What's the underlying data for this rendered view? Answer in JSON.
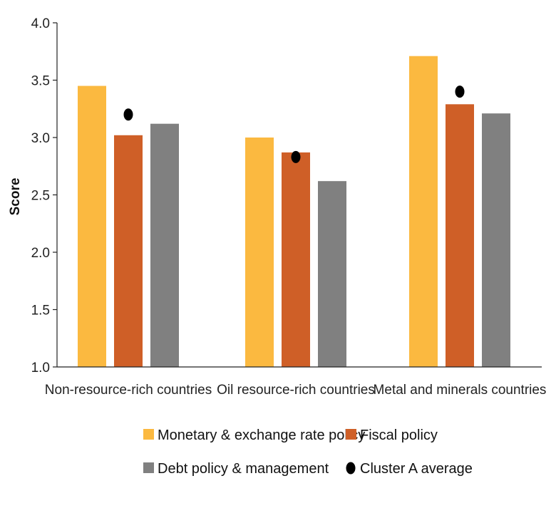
{
  "chart_data": {
    "type": "bar",
    "title": "",
    "xlabel": "",
    "ylabel": "Score",
    "ylim": [
      1.0,
      4.0
    ],
    "yticks": [
      "1.0",
      "1.5",
      "2.0",
      "2.5",
      "3.0",
      "3.5",
      "4.0"
    ],
    "grid": false,
    "legend_position": "bottom",
    "categories": [
      "Non-resource-rich countries",
      "Oil resource-rich countries",
      "Metal and minerals countries"
    ],
    "series": [
      {
        "name": "Monetary & exchange rate policy",
        "color": "#FBB940",
        "values": [
          3.45,
          3.0,
          3.71
        ]
      },
      {
        "name": "Fiscal policy",
        "color": "#CF5F27",
        "values": [
          3.02,
          2.87,
          3.29
        ]
      },
      {
        "name": "Debt policy & management",
        "color": "#808080",
        "values": [
          3.12,
          2.62,
          3.21
        ]
      }
    ],
    "markers": {
      "name": "Cluster A average",
      "color": "#000000",
      "values": [
        3.2,
        2.83,
        3.4
      ]
    }
  }
}
